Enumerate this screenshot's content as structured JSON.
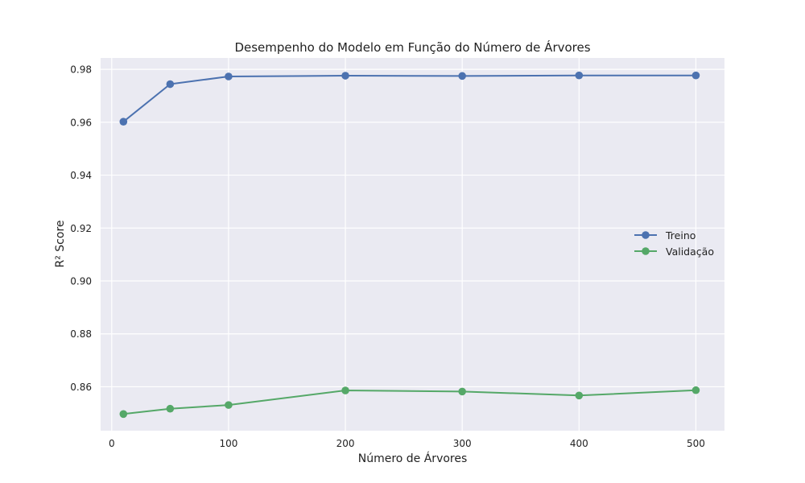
{
  "chart_data": {
    "type": "line",
    "title": "Desempenho do Modelo em Função do Número de Árvores",
    "xlabel": "Número de Árvores",
    "ylabel": "R² Score",
    "x": [
      10,
      50,
      100,
      200,
      300,
      400,
      500
    ],
    "xlim": [
      -9.5,
      524.5
    ],
    "ylim": [
      0.8434,
      0.9843
    ],
    "xticks": [
      0,
      100,
      200,
      300,
      400,
      500
    ],
    "yticks": [
      0.86,
      0.88,
      0.9,
      0.92,
      0.94,
      0.96,
      0.98
    ],
    "xtick_labels": [
      "0",
      "100",
      "200",
      "300",
      "400",
      "500"
    ],
    "ytick_labels": [
      "0.86",
      "0.88",
      "0.90",
      "0.92",
      "0.94",
      "0.96",
      "0.98"
    ],
    "grid": true,
    "legend_position": "center-right",
    "series": [
      {
        "name": "Treino",
        "color": "#4c72b0",
        "marker": "circle",
        "values": [
          0.9602,
          0.9744,
          0.9773,
          0.9776,
          0.9775,
          0.9777,
          0.9777
        ]
      },
      {
        "name": "Validação",
        "color": "#55a868",
        "marker": "circle",
        "values": [
          0.8497,
          0.8517,
          0.8531,
          0.8586,
          0.8582,
          0.8567,
          0.8587
        ]
      }
    ],
    "plot_background": "#eaeaf2",
    "grid_color": "#ffffff"
  }
}
